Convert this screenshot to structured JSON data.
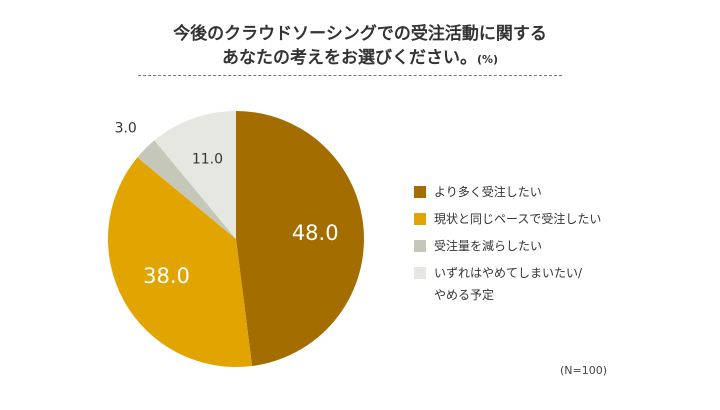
{
  "title_line1": "今後のクラウドソーシングでの受注活動に関する",
  "title_line2": "あなたの考えをお選びください。",
  "title_unit": "(%)",
  "sample_note": "(N=100)",
  "colors": {
    "more": "#a36d00",
    "same": "#e2a400",
    "less": "#c5c8b8",
    "quit": "#e7e7e2",
    "label_light": "#ffffff",
    "label_dark": "#333333"
  },
  "chart_data": {
    "type": "pie",
    "unit": "%",
    "start_angle_deg": 0,
    "direction": "clockwise",
    "slices": [
      {
        "label": "より多く受注したい",
        "label_lines": [
          "より多く受注したい"
        ],
        "value": 48.0,
        "display": "48.0",
        "color": "#a36d00",
        "label_color": "#ffffff"
      },
      {
        "label": "現状と同じペースで受注したい",
        "label_lines": [
          "現状と同じペースで受注したい"
        ],
        "value": 38.0,
        "display": "38.0",
        "color": "#e2a400",
        "label_color": "#ffffff"
      },
      {
        "label": "受注量を減らしたい",
        "label_lines": [
          "受注量を減らしたい"
        ],
        "value": 3.0,
        "display": "3.0",
        "color": "#c5c8b8",
        "label_color": "#333333"
      },
      {
        "label": "いずれはやめてしまいたい/やめる予定",
        "label_lines": [
          "いずれはやめてしまいたい/",
          "やめる予定"
        ],
        "value": 11.0,
        "display": "11.0",
        "color": "#e7e7e2",
        "label_color": "#333333"
      }
    ],
    "legend_position": "right"
  }
}
